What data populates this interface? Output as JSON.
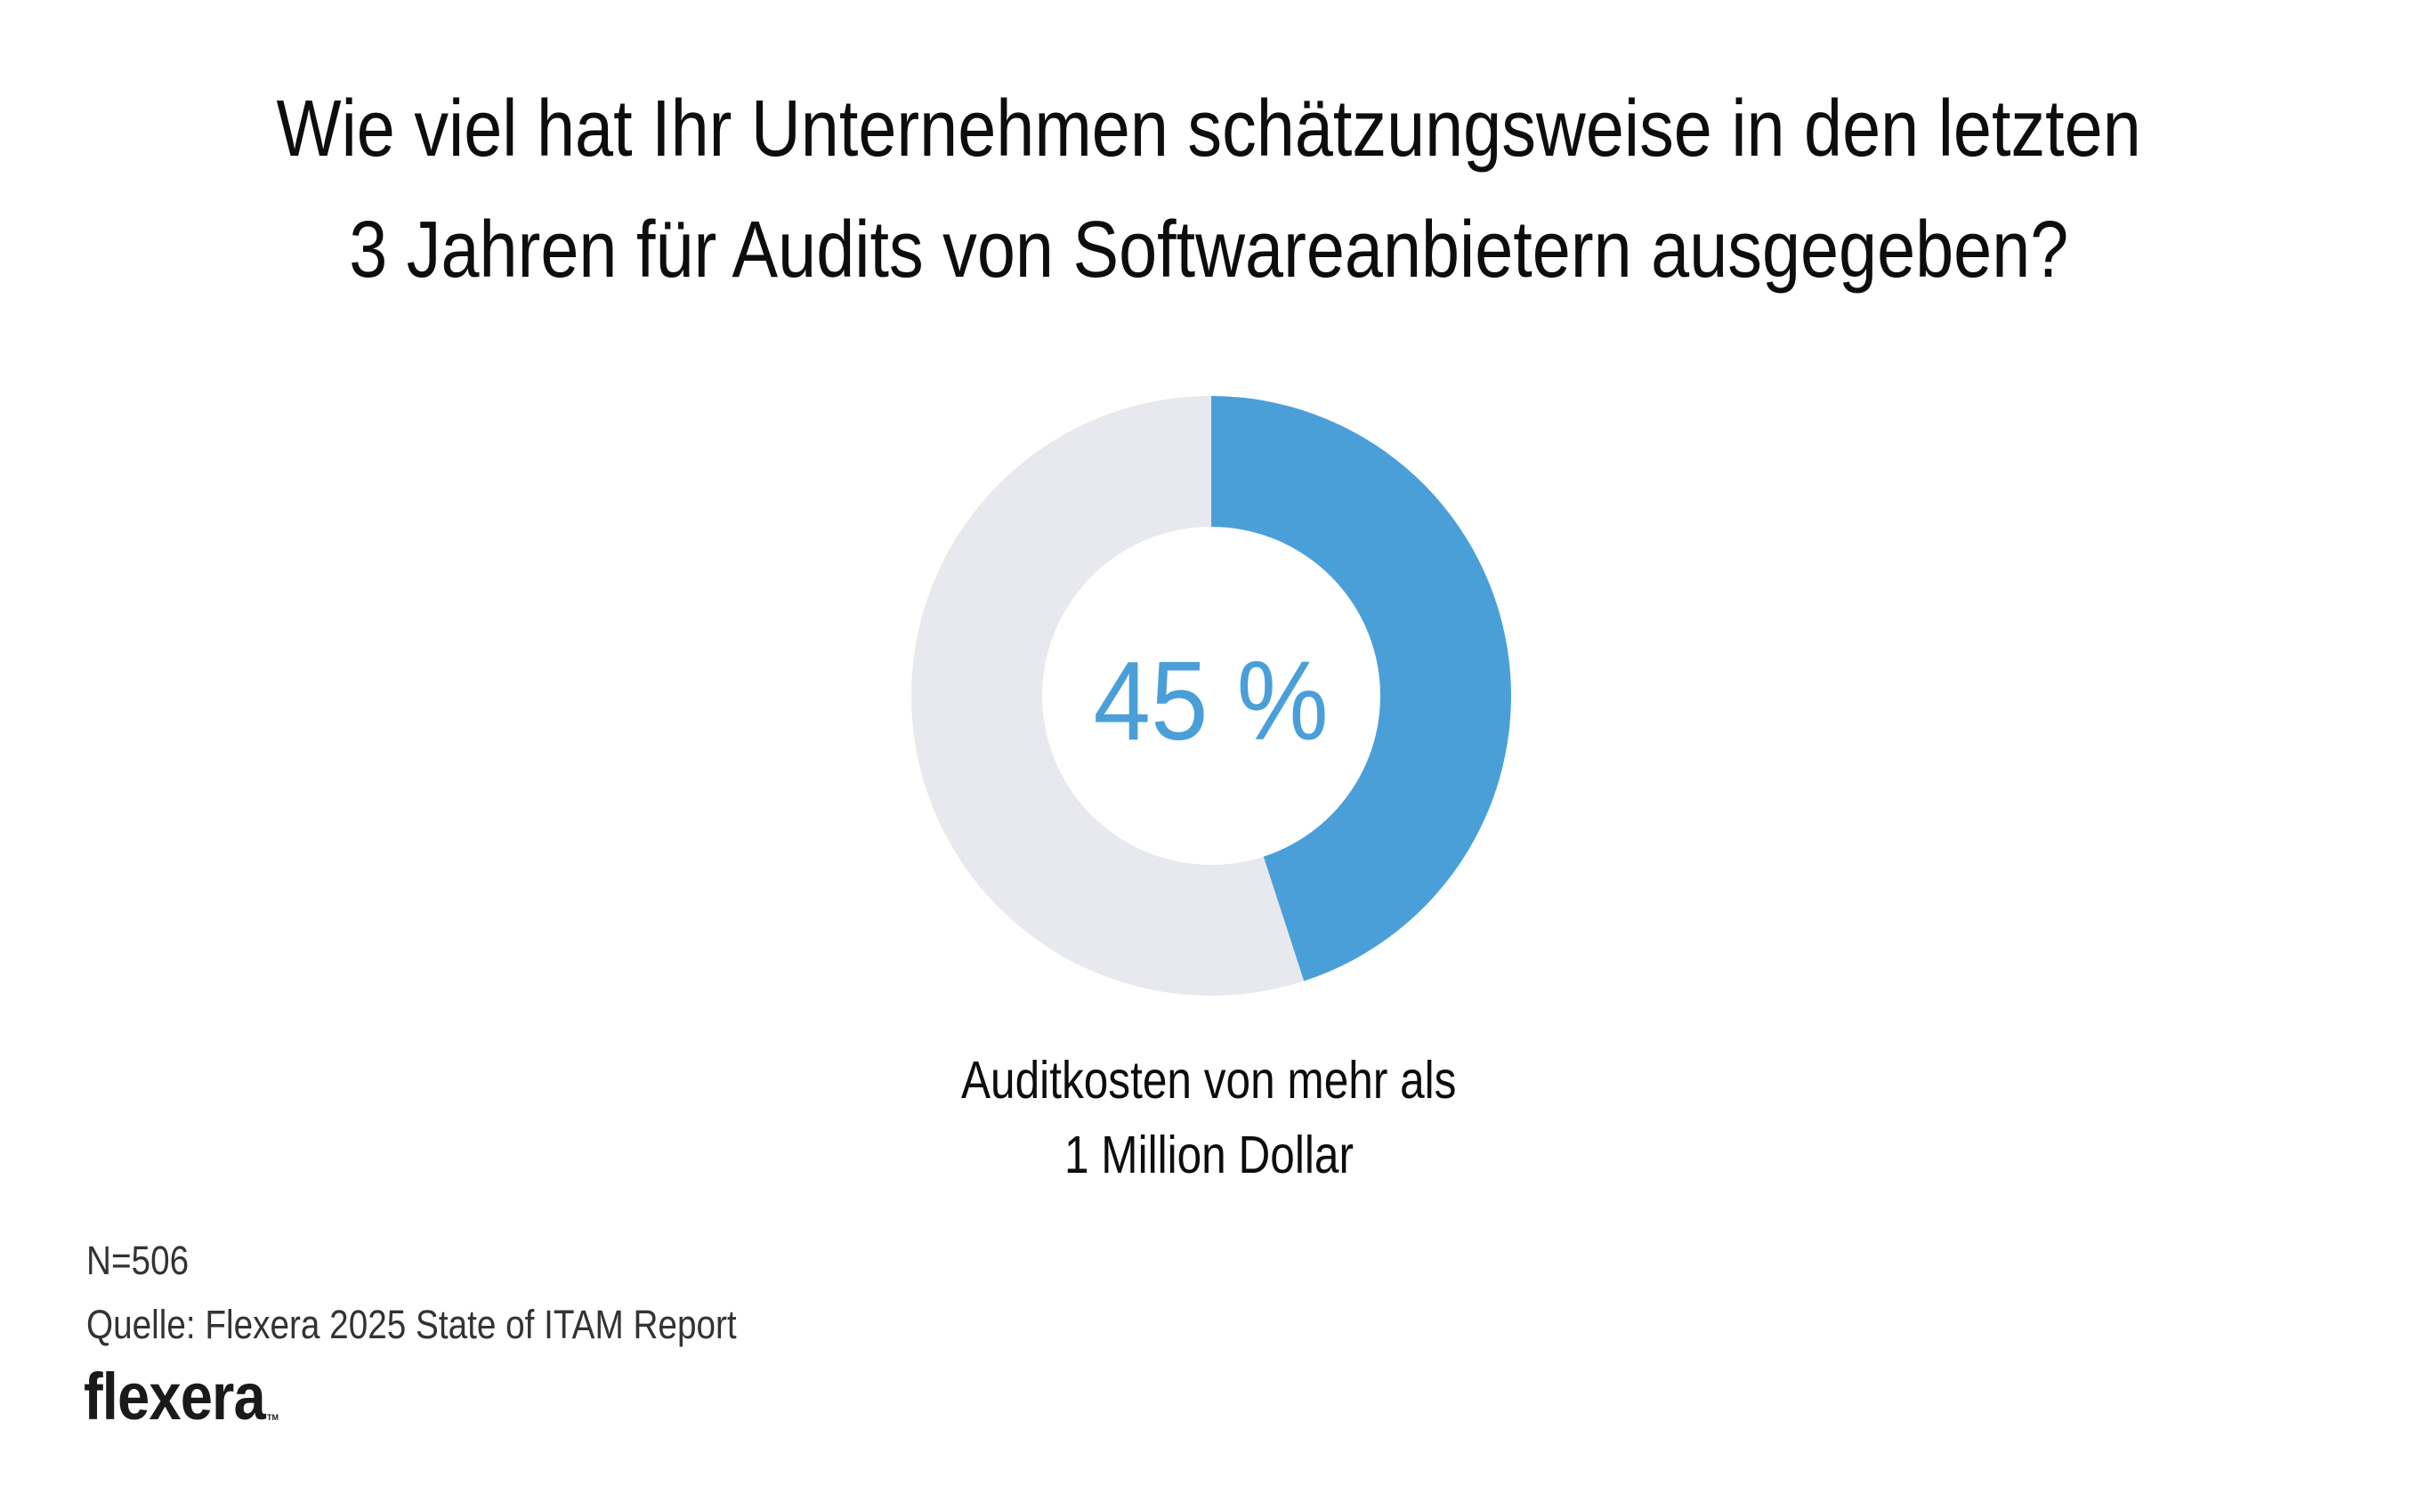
{
  "title": {
    "lines": [
      "Wie viel hat Ihr Unternehmen schätzungsweise in den letzten",
      "3 Jahren für Audits von Softwareanbietern ausgegeben?"
    ]
  },
  "chart_data": {
    "type": "pie",
    "variant": "donut",
    "title": "Wie viel hat Ihr Unternehmen schätzungsweise in den letzten 3 Jahren für Audits von Softwareanbietern ausgegeben?",
    "categories": [
      "Auditkosten von mehr als 1 Million Dollar",
      "Rest"
    ],
    "values": [
      45,
      55
    ],
    "unit": "%",
    "colors": [
      "#4a9fd9",
      "#e8e9ee"
    ],
    "center_label": "45 %",
    "slice_label_lines": [
      "Auditkosten von mehr als",
      "1 Million Dollar"
    ],
    "start_angle_deg": 0,
    "direction": "clockwise",
    "legend": "none"
  },
  "footer": {
    "sample_size": "N=506",
    "source": "Quelle: Flexera 2025 State of ITAM Report",
    "logo_text": "flexera",
    "logo_tm": "TM"
  }
}
